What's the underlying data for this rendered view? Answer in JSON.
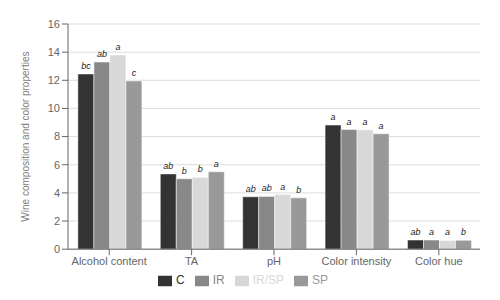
{
  "chart_data": {
    "type": "bar",
    "categories": [
      "Alcohol content",
      "TA",
      "pH",
      "Color intensity",
      "Color hue"
    ],
    "series": [
      {
        "name": "C",
        "color": "#333333",
        "values": [
          12.45,
          5.35,
          3.72,
          8.82,
          0.65
        ],
        "annotations": [
          "bc",
          "ab",
          "ab",
          "a",
          "ab"
        ]
      },
      {
        "name": "IR",
        "color": "#888888",
        "values": [
          13.3,
          5.0,
          3.75,
          8.5,
          0.65
        ],
        "annotations": [
          "ab",
          "b",
          "ab",
          "a",
          "a"
        ]
      },
      {
        "name": "IR/SP",
        "color": "#d8d8d8",
        "values": [
          13.8,
          5.1,
          3.88,
          8.48,
          0.62
        ],
        "annotations": [
          "a",
          "b",
          "a",
          "a",
          "a"
        ]
      },
      {
        "name": "SP",
        "color": "#999999",
        "values": [
          11.95,
          5.5,
          3.65,
          8.2,
          0.63
        ],
        "annotations": [
          "c",
          "a",
          "b",
          "a",
          "b"
        ]
      }
    ],
    "ylabel": "Wine composition and color properties",
    "ylim": [
      0,
      16
    ],
    "yticks": [
      0,
      2,
      4,
      6,
      8,
      10,
      12,
      14,
      16
    ],
    "grid": true,
    "legend": "bottom"
  }
}
